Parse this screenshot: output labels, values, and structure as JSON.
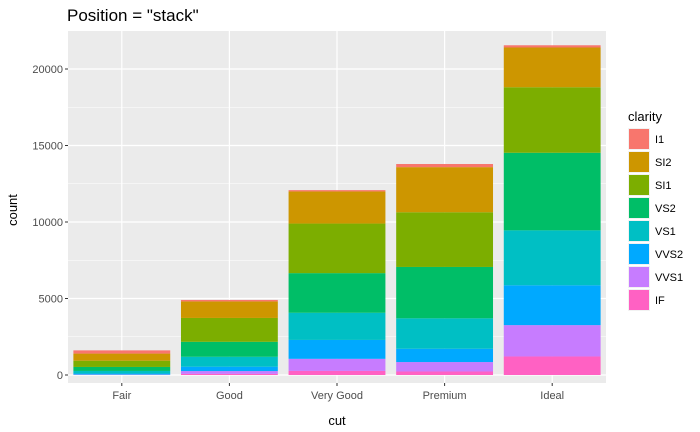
{
  "chart_data": {
    "type": "bar",
    "stacked": true,
    "title": "Position = \"stack\"",
    "xlabel": "cut",
    "ylabel": "count",
    "ylim": [
      0,
      22500
    ],
    "yticks": [
      0,
      5000,
      10000,
      15000,
      20000
    ],
    "yticklabels": [
      "0",
      "5000",
      "10000",
      "15000",
      "20000"
    ],
    "categories": [
      "Fair",
      "Good",
      "Very Good",
      "Premium",
      "Ideal"
    ],
    "legend_title": "clarity",
    "legend_position": "right",
    "grid": true,
    "series": [
      {
        "name": "I1",
        "color": "#F8766D",
        "values": [
          210,
          96,
          84,
          205,
          146
        ]
      },
      {
        "name": "SI2",
        "color": "#CD9600",
        "values": [
          466,
          1081,
          2100,
          2949,
          2598
        ]
      },
      {
        "name": "SI1",
        "color": "#7CAE00",
        "values": [
          408,
          1560,
          3240,
          3575,
          4282
        ]
      },
      {
        "name": "VS2",
        "color": "#00BE67",
        "values": [
          261,
          978,
          2591,
          3357,
          5071
        ]
      },
      {
        "name": "VS1",
        "color": "#00BFC4",
        "values": [
          170,
          648,
          1775,
          1989,
          3589
        ]
      },
      {
        "name": "VVS2",
        "color": "#00A9FF",
        "values": [
          69,
          286,
          1235,
          870,
          2606
        ]
      },
      {
        "name": "VVS1",
        "color": "#C77CFF",
        "values": [
          17,
          186,
          789,
          616,
          2047
        ]
      },
      {
        "name": "IF",
        "color": "#FF61C3",
        "values": [
          9,
          71,
          268,
          230,
          1212
        ]
      }
    ]
  }
}
